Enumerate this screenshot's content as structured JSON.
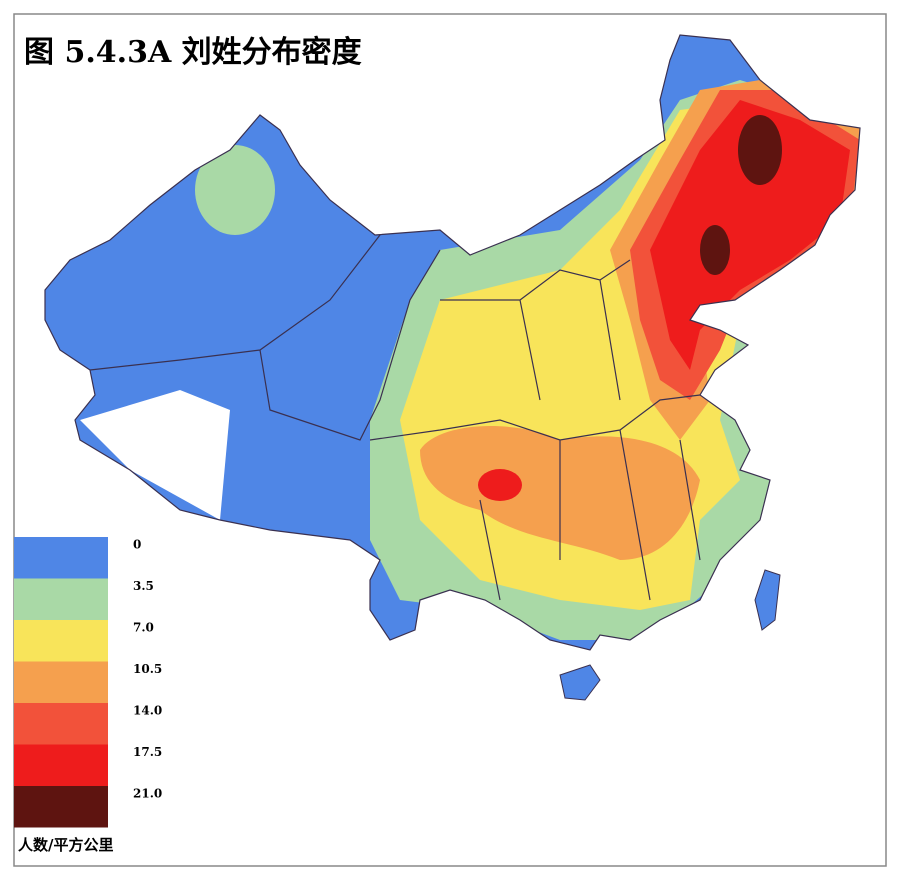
{
  "header": {
    "title": "图 5.4.3A  刘姓分布密度"
  },
  "legend": {
    "labels": [
      "0",
      "3.5",
      "7.0",
      "10.5",
      "14.0",
      "17.5",
      "21.0"
    ],
    "colors": [
      "#4f86e6",
      "#a9d9a6",
      "#f8e45a",
      "#f5a04e",
      "#f2523a",
      "#ee1c1c",
      "#5e1410"
    ],
    "unit": "人数/平方公里"
  }
}
